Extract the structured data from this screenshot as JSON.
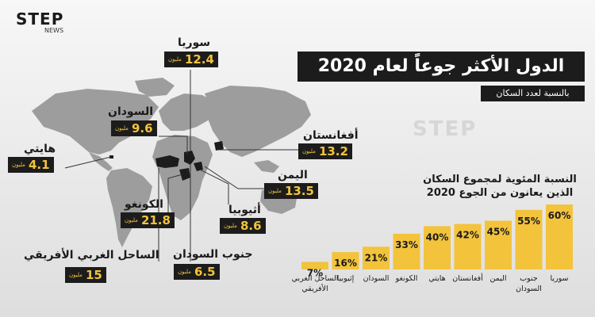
{
  "brand": {
    "logo_main": "STEP",
    "logo_sub": "NEWS",
    "watermark": "STEP"
  },
  "title": "الدول الأكثر جوعاً لعام 2020",
  "subtitle": "بالنسبة لعدد السكان",
  "unit_label": "مليون",
  "map_labels": [
    {
      "name": "سوريا",
      "value": "12.4"
    },
    {
      "name": "السودان",
      "value": "9.6"
    },
    {
      "name": "أفغانستان",
      "value": "13.2"
    },
    {
      "name": "هايتي",
      "value": "4.1"
    },
    {
      "name": "اليمن",
      "value": "13.5"
    },
    {
      "name": "الكونغو",
      "value": "21.8"
    },
    {
      "name": "أثيوبيا",
      "value": "8.6"
    },
    {
      "name": "جنوب السودان",
      "value": "6.5"
    },
    {
      "name": "الساحل الغربي الأفريقي",
      "value": "15"
    }
  ],
  "chart_data": {
    "type": "bar",
    "title": "النسبة المئوية لمجموع السكان الذين يعانون من الجوع 2020",
    "categories": [
      "الساحل الغربي الأفريقي",
      "إثيوبيا",
      "السودان",
      "الكونغو",
      "هايتي",
      "أفغانستان",
      "اليمن",
      "جنوب السودان",
      "سوريا"
    ],
    "values": [
      7,
      16,
      21,
      33,
      40,
      42,
      45,
      55,
      60
    ],
    "value_suffix": "%",
    "ylim": [
      0,
      60
    ],
    "bar_color": "#f3c33c",
    "label_color": "#1a1a1a"
  },
  "colors": {
    "accent": "#f3c33c",
    "dark": "#1c1c1c",
    "map": "#9a9a9a",
    "map_highlight": "#1c1c1c"
  }
}
